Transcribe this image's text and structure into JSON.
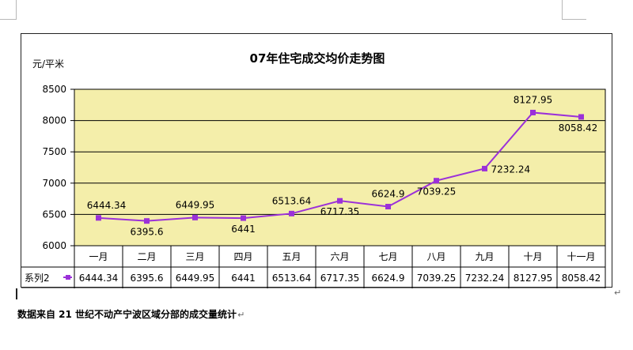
{
  "chart_data": {
    "type": "line",
    "title": "07年住宅成交均价走势图",
    "ylabel": "元/平米",
    "xlabel": "",
    "categories": [
      "一月",
      "二月",
      "三月",
      "四月",
      "五月",
      "六月",
      "七月",
      "八月",
      "九月",
      "十月",
      "十一月"
    ],
    "series": [
      {
        "name": "系列2",
        "values": [
          6444.34,
          6395.6,
          6449.95,
          6441,
          6513.64,
          6717.35,
          6624.9,
          7039.25,
          7232.24,
          8127.95,
          8058.42
        ],
        "labels": [
          "6444.34",
          "6395.6",
          "6449.95",
          "6441",
          "6513.64",
          "6717.35",
          "6624.9",
          "7039.25",
          "7232.24",
          "8127.95",
          "8058.42"
        ]
      }
    ],
    "ylim": [
      6000,
      8500
    ],
    "yticks": [
      "6000",
      "6500",
      "7000",
      "7500",
      "8000",
      "8500"
    ],
    "grid": true,
    "legend": "data-table",
    "colors": {
      "line": "#9b30d9",
      "plot_bg": "#f4eeaa",
      "grid": "#000000"
    }
  },
  "caption": {
    "text": "数据来自 21 世纪不动产宁波区域分部的成交量统计",
    "mark": "↵"
  }
}
